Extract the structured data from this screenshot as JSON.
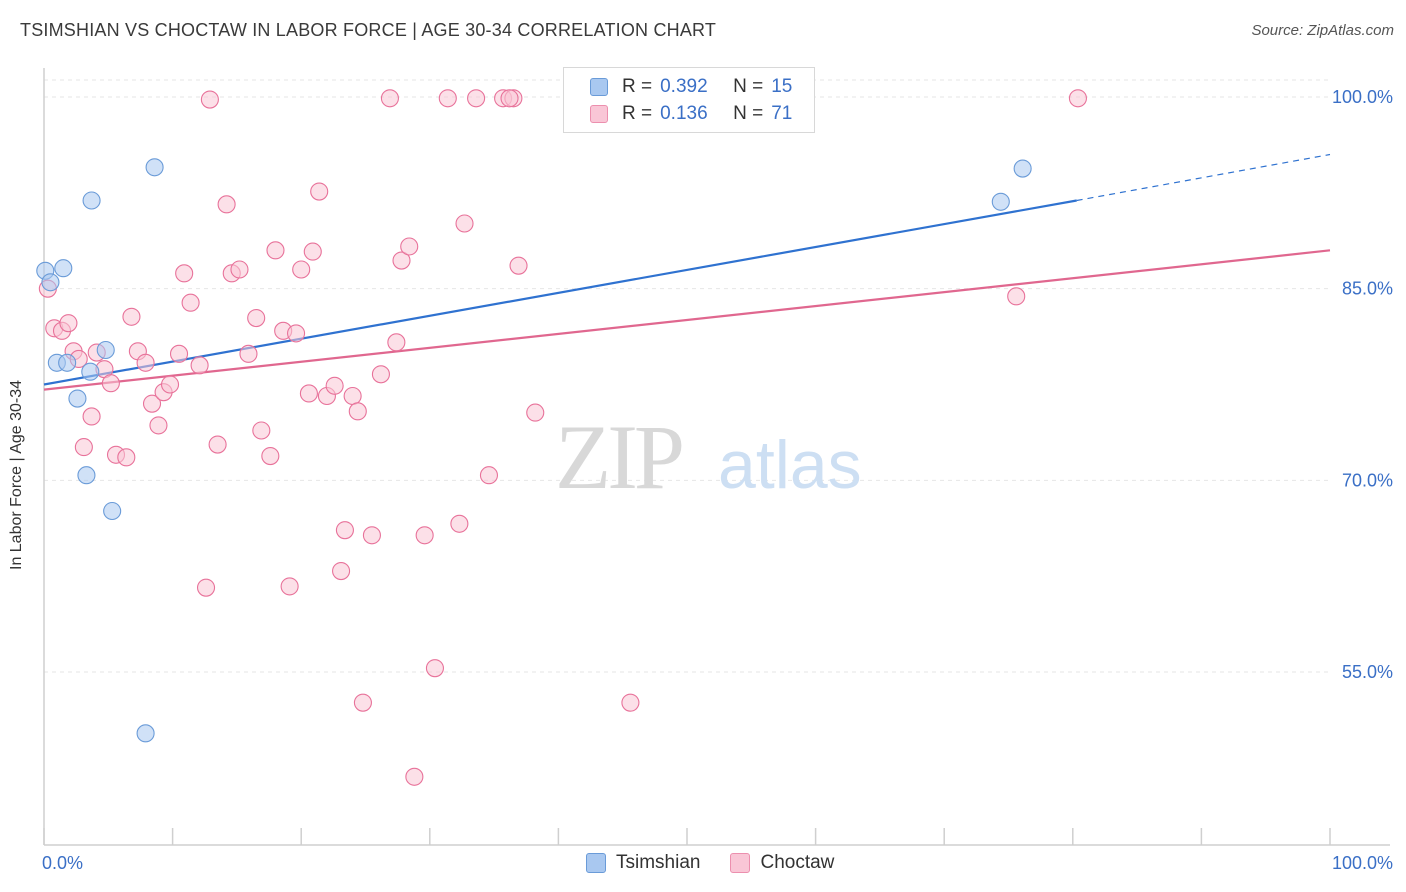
{
  "title": "TSIMSHIAN VS CHOCTAW IN LABOR FORCE | AGE 30-34 CORRELATION CHART",
  "source": "Source: ZipAtlas.com",
  "watermark": {
    "zip": "ZIP",
    "atlas": "atlas"
  },
  "legend": {
    "r_label": "R =",
    "n_label": "N =",
    "rows": [
      {
        "r": "0.392",
        "n": "15",
        "fill": "#a9c8f0",
        "stroke": "#6a9bd8"
      },
      {
        "r": "0.136",
        "n": "71",
        "fill": "#f9c6d6",
        "stroke": "#ec8fae"
      }
    ]
  },
  "chart_data": {
    "type": "scatter",
    "title": "TSIMSHIAN VS CHOCTAW IN LABOR FORCE | AGE 30-34 CORRELATION CHART",
    "xlabel": "",
    "ylabel": "In Labor Force | Age 30-34",
    "xlim": [
      0,
      100
    ],
    "ylim": [
      40,
      100
    ],
    "x_tick_labels": [
      "0.0%",
      "100.0%"
    ],
    "y_ticks": [
      55,
      70,
      85,
      100
    ],
    "y_tick_labels": [
      "55.0%",
      "70.0%",
      "85.0%",
      "100.0%"
    ],
    "grid": true,
    "legend_position": "top-center",
    "series": [
      {
        "name": "Tsimshian",
        "color": "#6a9bd8",
        "fill": "#a9c8f0",
        "trend": {
          "x0": 0,
          "y0": 77.5,
          "x1": 80.3,
          "y1": 91.9,
          "dashed_to_x": 100,
          "dashed_to_y": 95.5
        },
        "points": [
          [
            0.1,
            86.4
          ],
          [
            0.5,
            85.5
          ],
          [
            1.5,
            86.6
          ],
          [
            1.0,
            79.2
          ],
          [
            1.8,
            79.2
          ],
          [
            3.7,
            91.9
          ],
          [
            2.6,
            76.4
          ],
          [
            3.3,
            70.4
          ],
          [
            3.6,
            78.5
          ],
          [
            4.8,
            80.2
          ],
          [
            5.3,
            67.6
          ],
          [
            8.6,
            94.5
          ],
          [
            7.9,
            50.2
          ],
          [
            74.4,
            91.8
          ],
          [
            76.1,
            94.4
          ]
        ]
      },
      {
        "name": "Choctaw",
        "color": "#e8729a",
        "fill": "#f9c6d6",
        "trend": {
          "x0": 0,
          "y0": 77.1,
          "x1": 100,
          "y1": 88.0
        },
        "points": [
          [
            0.3,
            85.0
          ],
          [
            0.8,
            81.9
          ],
          [
            1.4,
            81.7
          ],
          [
            1.9,
            82.3
          ],
          [
            2.3,
            80.1
          ],
          [
            2.7,
            79.5
          ],
          [
            3.1,
            72.6
          ],
          [
            3.7,
            75.0
          ],
          [
            4.1,
            80.0
          ],
          [
            4.7,
            78.7
          ],
          [
            5.2,
            77.6
          ],
          [
            5.6,
            72.0
          ],
          [
            6.4,
            71.8
          ],
          [
            6.8,
            82.8
          ],
          [
            7.3,
            80.1
          ],
          [
            7.9,
            79.2
          ],
          [
            8.4,
            76.0
          ],
          [
            8.9,
            74.3
          ],
          [
            9.3,
            76.9
          ],
          [
            9.8,
            77.5
          ],
          [
            10.5,
            79.9
          ],
          [
            10.9,
            86.2
          ],
          [
            11.4,
            83.9
          ],
          [
            12.1,
            79.0
          ],
          [
            12.6,
            61.6
          ],
          [
            12.9,
            99.8
          ],
          [
            13.5,
            72.8
          ],
          [
            14.2,
            91.6
          ],
          [
            14.6,
            86.2
          ],
          [
            15.2,
            86.5
          ],
          [
            15.9,
            79.9
          ],
          [
            16.5,
            82.7
          ],
          [
            16.9,
            73.9
          ],
          [
            17.6,
            71.9
          ],
          [
            18.0,
            88.0
          ],
          [
            18.6,
            81.7
          ],
          [
            19.1,
            61.7
          ],
          [
            19.6,
            81.5
          ],
          [
            20.0,
            86.5
          ],
          [
            20.6,
            76.8
          ],
          [
            20.9,
            87.9
          ],
          [
            21.4,
            92.6
          ],
          [
            22.0,
            76.6
          ],
          [
            22.6,
            77.4
          ],
          [
            23.1,
            62.9
          ],
          [
            23.4,
            66.1
          ],
          [
            24.0,
            76.6
          ],
          [
            24.8,
            52.6
          ],
          [
            25.5,
            65.7
          ],
          [
            26.2,
            78.3
          ],
          [
            26.9,
            99.9
          ],
          [
            27.4,
            80.8
          ],
          [
            27.8,
            87.2
          ],
          [
            28.4,
            88.3
          ],
          [
            28.8,
            46.8
          ],
          [
            29.6,
            65.7
          ],
          [
            30.4,
            55.3
          ],
          [
            31.4,
            99.9
          ],
          [
            32.3,
            66.6
          ],
          [
            32.7,
            90.1
          ],
          [
            33.6,
            99.9
          ],
          [
            34.6,
            70.4
          ],
          [
            35.7,
            99.9
          ],
          [
            36.5,
            99.9
          ],
          [
            36.9,
            86.8
          ],
          [
            38.2,
            75.3
          ],
          [
            45.6,
            52.6
          ],
          [
            75.6,
            84.4
          ],
          [
            80.4,
            99.9
          ],
          [
            36.2,
            99.9
          ],
          [
            24.4,
            75.4
          ]
        ]
      }
    ]
  }
}
